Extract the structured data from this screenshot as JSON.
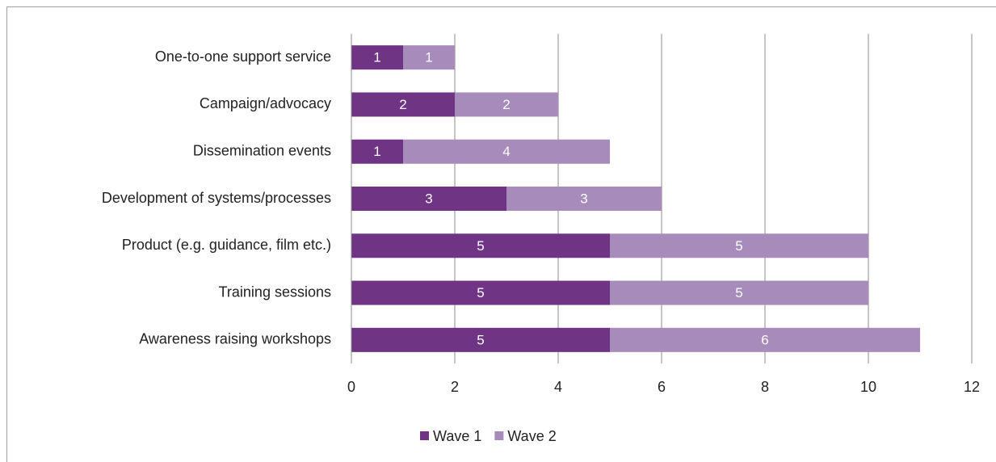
{
  "chart_data": {
    "type": "bar",
    "orientation": "horizontal",
    "stacked": true,
    "categories": [
      "One-to-one support service",
      "Campaign/advocacy",
      "Dissemination events",
      "Development of systems/processes",
      "Product (e.g. guidance, film etc.)",
      "Training sessions",
      "Awareness raising workshops"
    ],
    "series": [
      {
        "name": "Wave 1",
        "color": "#6f3584",
        "values": [
          1,
          2,
          1,
          3,
          5,
          5,
          5
        ]
      },
      {
        "name": "Wave 2",
        "color": "#a78bba",
        "values": [
          1,
          2,
          4,
          3,
          5,
          5,
          6
        ]
      }
    ],
    "xlim": [
      0,
      12
    ],
    "xticks": [
      0,
      2,
      4,
      6,
      8,
      10,
      12
    ],
    "grid": true,
    "legend": "bottom"
  }
}
